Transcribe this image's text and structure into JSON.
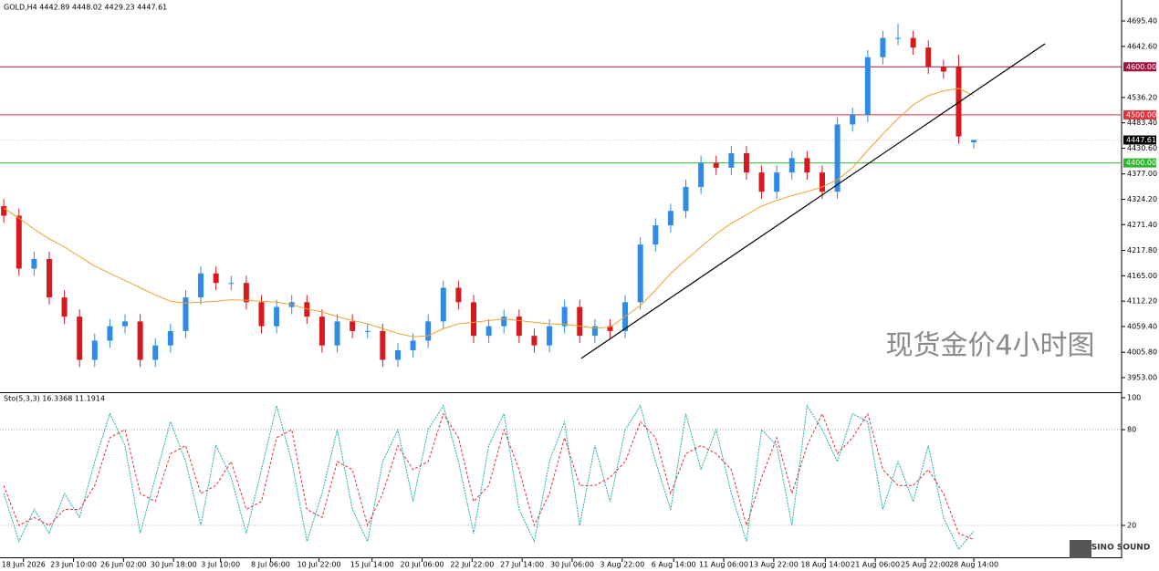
{
  "chart_data": [
    {
      "type": "candlestick",
      "title": "GOLD,H4 4442.89 4448.02 4429.23 4447.61",
      "up_color": "#2e8ce6",
      "down_color": "#d6191f",
      "open": [
        4310,
        4290,
        4180,
        4200,
        4120,
        4080,
        3990,
        4030,
        4060,
        4070,
        3990,
        4020,
        4050,
        4120,
        4170,
        4150,
        4150,
        4110,
        4060,
        4100,
        4110,
        4080,
        4020,
        4070,
        4050,
        4050,
        3990,
        4010,
        4030,
        4070,
        4140,
        4110,
        4040,
        4060,
        4080,
        4040,
        4020,
        4060,
        4100,
        4040,
        4060,
        4050,
        4110,
        4230,
        4270,
        4300,
        4350,
        4400,
        4390,
        4420,
        4380,
        4340,
        4380,
        4410,
        4380,
        4340,
        4480,
        4500,
        4620,
        4660,
        4660,
        4640,
        4600,
        4600,
        4442.89
      ],
      "high": [
        4325,
        4305,
        4215,
        4215,
        4135,
        4095,
        4045,
        4075,
        4085,
        4085,
        4035,
        4065,
        4135,
        4185,
        4185,
        4165,
        4165,
        4125,
        4115,
        4125,
        4125,
        4095,
        4085,
        4085,
        4065,
        4065,
        4025,
        4045,
        4085,
        4155,
        4155,
        4125,
        4075,
        4095,
        4095,
        4055,
        4075,
        4115,
        4115,
        4075,
        4075,
        4125,
        4245,
        4285,
        4315,
        4365,
        4415,
        4415,
        4435,
        4435,
        4395,
        4395,
        4425,
        4425,
        4395,
        4495,
        4515,
        4635,
        4675,
        4690,
        4675,
        4655,
        4615,
        4625,
        4448.02
      ],
      "low": [
        4275,
        4165,
        4165,
        4105,
        4065,
        3975,
        3975,
        4015,
        4045,
        3975,
        3975,
        4005,
        4035,
        4105,
        4135,
        4135,
        4095,
        4045,
        4045,
        4085,
        4065,
        4005,
        4005,
        4035,
        4035,
        3975,
        3975,
        3995,
        4015,
        4055,
        4095,
        4025,
        4025,
        4045,
        4025,
        4005,
        4005,
        4045,
        4025,
        4025,
        4035,
        4035,
        4095,
        4215,
        4255,
        4285,
        4335,
        4375,
        4375,
        4365,
        4325,
        4325,
        4365,
        4365,
        4325,
        4325,
        4465,
        4485,
        4605,
        4645,
        4625,
        4585,
        4575,
        4440,
        4429.23
      ],
      "close": [
        4290,
        4180,
        4200,
        4120,
        4080,
        3990,
        4030,
        4060,
        4070,
        3990,
        4020,
        4050,
        4120,
        4170,
        4150,
        4150,
        4110,
        4060,
        4100,
        4110,
        4080,
        4020,
        4070,
        4050,
        4050,
        3990,
        4010,
        4030,
        4070,
        4140,
        4110,
        4040,
        4060,
        4080,
        4040,
        4020,
        4060,
        4100,
        4040,
        4060,
        4050,
        4110,
        4230,
        4270,
        4300,
        4350,
        4400,
        4390,
        4420,
        4380,
        4340,
        4380,
        4410,
        4380,
        4340,
        4480,
        4500,
        4620,
        4660,
        4660,
        4640,
        4600,
        4590,
        4455,
        4447.61
      ],
      "ma": {
        "color": "#f0a030",
        "values": [
          4306,
          4285,
          4262,
          4242,
          4225,
          4205,
          4185,
          4170,
          4155,
          4140,
          4125,
          4112,
          4108,
          4110,
          4112,
          4115,
          4114,
          4112,
          4110,
          4105,
          4096,
          4090,
          4080,
          4072,
          4065,
          4055,
          4045,
          4038,
          4040,
          4055,
          4065,
          4068,
          4072,
          4075,
          4072,
          4068,
          4065,
          4064,
          4060,
          4056,
          4058,
          4080,
          4103,
          4135,
          4170,
          4198,
          4225,
          4252,
          4274,
          4292,
          4310,
          4322,
          4332,
          4340,
          4350,
          4365,
          4390,
          4426,
          4460,
          4492,
          4521,
          4540,
          4550,
          4555,
          4540
        ]
      },
      "xlim": [
        -0.25,
        73.75
      ],
      "xticks": [
        {
          "value": 1.3,
          "label": "18 Jun 2026"
        },
        {
          "value": 4.6,
          "label": "23 Jun 10:00"
        },
        {
          "value": 7.9,
          "label": "26 Jun 02:00"
        },
        {
          "value": 11.2,
          "label": "30 Jun 18:00"
        },
        {
          "value": 14.3,
          "label": "3 Jul 10:00"
        },
        {
          "value": 17.6,
          "label": "8 Jul 06:00"
        },
        {
          "value": 20.8,
          "label": "10 Jul 22:00"
        },
        {
          "value": 24.3,
          "label": "15 Jul 14:00"
        },
        {
          "value": 27.6,
          "label": "20 Jul 06:00"
        },
        {
          "value": 30.9,
          "label": "22 Jul 22:00"
        },
        {
          "value": 34.2,
          "label": "27 Jul 14:00"
        },
        {
          "value": 37.5,
          "label": "30 Jul 06:00"
        },
        {
          "value": 40.8,
          "label": "3 Aug 22:00"
        },
        {
          "value": 44.2,
          "label": "6 Aug 14:00"
        },
        {
          "value": 47.5,
          "label": "11 Aug 06:00"
        },
        {
          "value": 50.8,
          "label": "13 Aug 22:00"
        },
        {
          "value": 54.2,
          "label": "18 Aug 14:00"
        },
        {
          "value": 57.5,
          "label": "21 Aug 06:00"
        },
        {
          "value": 60.8,
          "label": "25 Aug 22:00"
        },
        {
          "value": 64.0,
          "label": "28 Aug 14:00"
        }
      ],
      "ylim": [
        3922.6,
        4739.1
      ],
      "yticks": [
        {
          "value": 4695.4,
          "label": "4695.40"
        },
        {
          "value": 4642.6,
          "label": "4642.60"
        },
        {
          "value": 4536.2,
          "label": "4536.20"
        },
        {
          "value": 4483.4,
          "label": "4483.40"
        },
        {
          "value": 4430.6,
          "label": "4430.60"
        },
        {
          "value": 4377,
          "label": "4377.00"
        },
        {
          "value": 4324.2,
          "label": "4324.20"
        },
        {
          "value": 4271.4,
          "label": "4271.40"
        },
        {
          "value": 4217.8,
          "label": "4217.80"
        },
        {
          "value": 4165,
          "label": "4165.00"
        },
        {
          "value": 4112.2,
          "label": "4112.20"
        },
        {
          "value": 4059.4,
          "label": "4059.40"
        },
        {
          "value": 4005.8,
          "label": "4005.80"
        },
        {
          "value": 3953,
          "label": "3953.00"
        }
      ],
      "levels": [
        {
          "value": 4600,
          "label": "4600.00",
          "color": "#a0153e"
        },
        {
          "value": 4500,
          "label": "4500.00",
          "color": "#e0303a"
        },
        {
          "value": 4400,
          "label": "4400.00",
          "color": "#2db82d"
        }
      ],
      "last_price": {
        "value": 4447.61,
        "label": "4447.61"
      },
      "trendline": {
        "x": [
          38.1,
          68.7
        ],
        "y": [
          3993,
          4648
        ],
        "color": "#000000"
      },
      "watermark": "现货金价4小时图"
    },
    {
      "type": "stochastic",
      "title": "Sto(5,3,3) 16.3368 11.1914",
      "xlim": [
        -0.25,
        73.75
      ],
      "ylim": [
        0,
        102.9
      ],
      "yticks": [
        20,
        80,
        100
      ],
      "levels": [
        20,
        80
      ],
      "series": [
        {
          "color": "#20b2aa",
          "values": [
            40,
            10,
            30,
            15,
            40,
            25,
            60,
            90,
            70,
            15,
            50,
            85,
            60,
            20,
            70,
            50,
            15,
            55,
            95,
            60,
            10,
            40,
            80,
            30,
            10,
            60,
            80,
            35,
            80,
            95,
            60,
            15,
            70,
            90,
            30,
            10,
            60,
            85,
            20,
            70,
            35,
            80,
            95,
            60,
            30,
            90,
            55,
            80,
            40,
            10,
            80,
            70,
            20,
            95,
            80,
            60,
            90,
            85,
            30,
            60,
            35,
            70,
            25,
            5,
            16.3368
          ]
        },
        {
          "color": "#e0303a",
          "values": [
            45,
            20,
            25,
            20,
            30,
            30,
            45,
            75,
            80,
            40,
            35,
            65,
            70,
            40,
            45,
            60,
            30,
            35,
            75,
            80,
            30,
            25,
            60,
            55,
            20,
            40,
            70,
            55,
            60,
            90,
            75,
            35,
            45,
            80,
            55,
            20,
            40,
            75,
            45,
            45,
            50,
            60,
            85,
            75,
            40,
            65,
            70,
            65,
            55,
            20,
            50,
            75,
            40,
            70,
            90,
            65,
            75,
            90,
            55,
            45,
            45,
            55,
            40,
            15,
            11.1914
          ]
        }
      ]
    }
  ],
  "branding": {
    "logo": "SINO SOUND"
  }
}
